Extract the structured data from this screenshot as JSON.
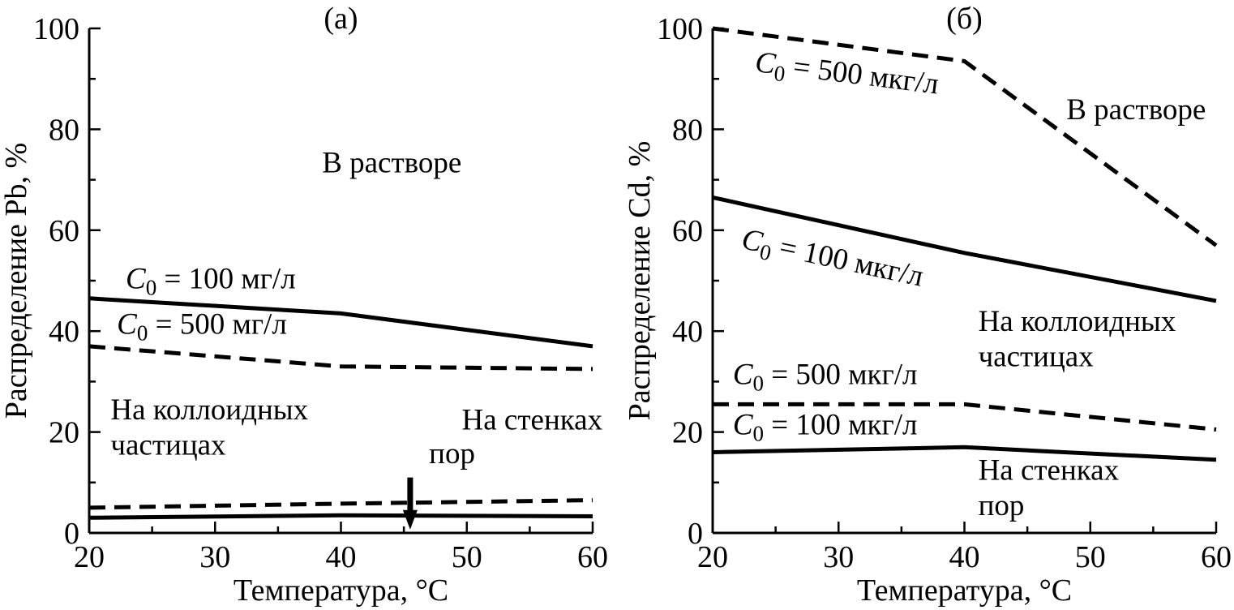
{
  "chart_data": [
    {
      "type": "line",
      "panel_label": "(а)",
      "xlabel": "Температура, °C",
      "ylabel": "Распределение Pb, %",
      "xlim": [
        20,
        60
      ],
      "ylim": [
        0,
        100
      ],
      "xticks": [
        20,
        30,
        40,
        50,
        60
      ],
      "yticks": [
        0,
        20,
        40,
        60,
        80,
        100
      ],
      "grid": false,
      "series": [
        {
          "style": "solid",
          "x": [
            20,
            40,
            60
          ],
          "y": [
            46.5,
            43.5,
            37
          ]
        },
        {
          "style": "dashed",
          "x": [
            20,
            40,
            60
          ],
          "y": [
            37,
            33,
            32.5
          ]
        },
        {
          "style": "dashed",
          "x": [
            20,
            40,
            60
          ],
          "y": [
            5,
            5.8,
            6.5
          ]
        },
        {
          "style": "solid",
          "x": [
            20,
            40,
            60
          ],
          "y": [
            3,
            3.5,
            3.3
          ]
        }
      ],
      "annotations": [
        {
          "id": "region-solution",
          "text": "В растворе",
          "x": 38.5,
          "y": 71.5
        },
        {
          "id": "c0-100-label",
          "sym": "C",
          "sub": "0",
          "rest": " = 100 мг/л",
          "x": 22.9,
          "y": 48.5
        },
        {
          "id": "c0-500-label",
          "sym": "C",
          "sub": "0",
          "rest": " = 500 мг/л",
          "x": 22.2,
          "y": 39.5
        },
        {
          "id": "colloid-line1",
          "text": "На коллоидных",
          "x": 21.7,
          "y": 22.5
        },
        {
          "id": "colloid-line2",
          "text": "частицах",
          "x": 21.7,
          "y": 15.5
        },
        {
          "id": "pore-walls-line1",
          "text": "На стенках",
          "x": 49.6,
          "y": 20.5
        },
        {
          "id": "pore-walls-line2",
          "text": "пор",
          "x": 47.0,
          "y": 13.8
        }
      ],
      "arrow": {
        "x": 45.5,
        "y_from": 11,
        "y_to": 1
      }
    },
    {
      "type": "line",
      "panel_label": "(б)",
      "xlabel": "Температура, °C",
      "ylabel": "Распределение Cd, %",
      "xlim": [
        20,
        60
      ],
      "ylim": [
        0,
        100
      ],
      "xticks": [
        20,
        30,
        40,
        50,
        60
      ],
      "yticks": [
        0,
        20,
        40,
        60,
        80,
        100
      ],
      "grid": false,
      "series": [
        {
          "style": "dashed",
          "x": [
            20,
            40,
            60
          ],
          "y": [
            100,
            93.5,
            57
          ]
        },
        {
          "style": "solid",
          "x": [
            20,
            40,
            60
          ],
          "y": [
            66.5,
            55.5,
            46
          ]
        },
        {
          "style": "dashed",
          "x": [
            20,
            40,
            60
          ],
          "y": [
            25.5,
            25.5,
            20.5
          ]
        },
        {
          "style": "solid",
          "x": [
            20,
            40,
            60
          ],
          "y": [
            16,
            17,
            14.5
          ]
        }
      ],
      "annotations": [
        {
          "id": "c0-500-label",
          "sym": "C",
          "sub": "0",
          "rest": " = 500 мкг/л",
          "x": 23.3,
          "y": 91.5,
          "rotate": 7
        },
        {
          "id": "region-solution",
          "text": "В растворе",
          "x": 48.1,
          "y": 82,
          "anchor": "start"
        },
        {
          "id": "c0-100-label",
          "sym": "C",
          "sub": "0",
          "rest": " = 100 мкг/л",
          "x": 22.2,
          "y": 56.5,
          "rotate": 12
        },
        {
          "id": "colloid-line1",
          "text": "На коллоидных",
          "x": 41.1,
          "y": 40,
          "anchor": "start"
        },
        {
          "id": "colloid-line2",
          "text": "частицах",
          "x": 41.1,
          "y": 33,
          "anchor": "start"
        },
        {
          "id": "c0-500-label-lower",
          "sym": "C",
          "sub": "0",
          "rest": " = 500 мкг/л",
          "x": 21.6,
          "y": 29.5
        },
        {
          "id": "c0-100-label-lower",
          "sym": "C",
          "sub": "0",
          "rest": " = 100 мкг/л",
          "x": 21.6,
          "y": 19.5
        },
        {
          "id": "pore-walls-line1",
          "text": "На стенках",
          "x": 41.1,
          "y": 10.5,
          "anchor": "start"
        },
        {
          "id": "pore-walls-line2",
          "text": "пор",
          "x": 41.1,
          "y": 3.5,
          "anchor": "start"
        }
      ]
    }
  ]
}
